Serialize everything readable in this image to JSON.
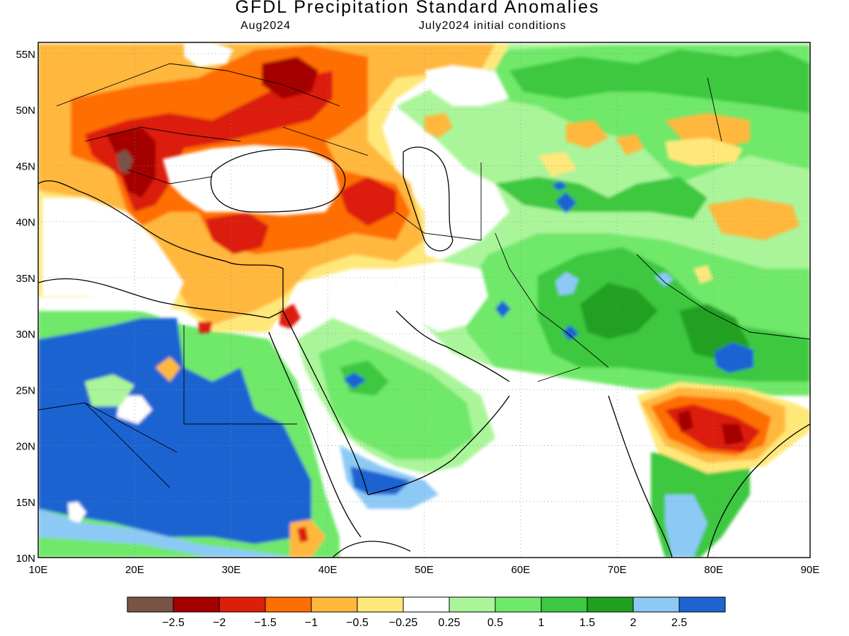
{
  "header": {
    "title": "GFDL Precipitation Standard Anomalies",
    "valid_month": "Aug2024",
    "init_conditions": "July2024 initial conditions"
  },
  "map": {
    "lon_range": [
      10,
      90
    ],
    "lat_range": [
      10,
      56
    ],
    "x_ticks": [
      {
        "value": 10,
        "label": "10E"
      },
      {
        "value": 20,
        "label": "20E"
      },
      {
        "value": 30,
        "label": "30E"
      },
      {
        "value": 40,
        "label": "40E"
      },
      {
        "value": 50,
        "label": "50E"
      },
      {
        "value": 60,
        "label": "60E"
      },
      {
        "value": 70,
        "label": "70E"
      },
      {
        "value": 80,
        "label": "80E"
      },
      {
        "value": 90,
        "label": "90E"
      }
    ],
    "y_ticks": [
      {
        "value": 10,
        "label": "10N"
      },
      {
        "value": 15,
        "label": "15N"
      },
      {
        "value": 20,
        "label": "20N"
      },
      {
        "value": 25,
        "label": "25N"
      },
      {
        "value": 30,
        "label": "30N"
      },
      {
        "value": 35,
        "label": "35N"
      },
      {
        "value": 40,
        "label": "40N"
      },
      {
        "value": 45,
        "label": "45N"
      },
      {
        "value": 50,
        "label": "50N"
      },
      {
        "value": 55,
        "label": "55N"
      }
    ],
    "gridlines": "dotted"
  },
  "colorbar": {
    "colors": [
      "#7a5347",
      "#a50000",
      "#dc1e0a",
      "#ff6e00",
      "#ffb83c",
      "#ffe87a",
      "#ffffff",
      "#aaf59a",
      "#70e86a",
      "#3cc840",
      "#20a020",
      "#8ccaf5",
      "#1e64d2"
    ],
    "labels": [
      "-2.5",
      "-2",
      "-1.5",
      "-1",
      "-0.5",
      "-0.25",
      "0.25",
      "0.5",
      "1",
      "1.5",
      "2",
      "2.5"
    ]
  }
}
